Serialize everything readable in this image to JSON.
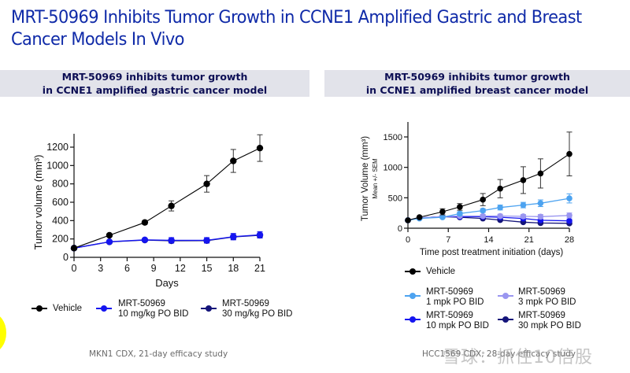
{
  "slide": {
    "title_line1": "MRT-50969 Inhibits Tumor Growth in CCNE1 Amplified Gastric and Breast",
    "title_line2": "Cancer Models In Vivo",
    "title_color": "#0f2aa8",
    "watermark": "雪球：抓住10倍股"
  },
  "panels": {
    "left": {
      "header_line1": "MRT-50969 inhibits tumor growth",
      "header_line2": "in CCNE1 amplified gastric cancer model",
      "footnote": "MKN1 CDX, 21-day efficacy study",
      "legend": [
        {
          "line1": "Vehicle",
          "line2": "",
          "color": "#000000"
        },
        {
          "line1": "MRT-50969",
          "line2": "10 mg/kg PO BID",
          "color": "#1515f0"
        },
        {
          "line1": "MRT-50969",
          "line2": "30 mg/kg PO BID",
          "color": "#14147a"
        }
      ]
    },
    "right": {
      "header_line1": "MRT-50969 inhibits tumor growth",
      "header_line2": "in CCNE1 amplified breast cancer model",
      "footnote": "HCC1569 CDX, 28-day efficacy study",
      "legend": [
        {
          "line1": "Vehicle",
          "line2": "",
          "color": "#000000"
        },
        {
          "line1": "MRT-50969",
          "line2": "1 mpk PO BID",
          "color": "#4da3f0"
        },
        {
          "line1": "MRT-50969",
          "line2": "3 mpk PO BID",
          "color": "#9a96f0"
        },
        {
          "line1": "MRT-50969",
          "line2": "10 mpk PO BID",
          "color": "#1515f0"
        },
        {
          "line1": "MRT-50969",
          "line2": "30 mpk PO BID",
          "color": "#14147a"
        }
      ]
    }
  },
  "chart_data": [
    {
      "type": "line",
      "title": "MRT-50969 inhibits tumor growth in CCNE1 amplified gastric cancer model",
      "xlabel": "Days",
      "ylabel": "Tumor volume (mm³)",
      "xlim": [
        0,
        21
      ],
      "ylim": [
        0,
        1300
      ],
      "xticks": [
        0,
        3,
        6,
        9,
        12,
        15,
        18,
        21
      ],
      "yticks": [
        0,
        200,
        400,
        600,
        800,
        1000,
        1200
      ],
      "x": [
        0,
        4,
        8,
        11,
        15,
        18,
        21
      ],
      "series": [
        {
          "name": "Vehicle",
          "color": "#000000",
          "values": [
            100,
            240,
            380,
            560,
            800,
            1050,
            1190
          ],
          "err": [
            10,
            15,
            20,
            55,
            90,
            125,
            145
          ]
        },
        {
          "name": "MRT-50969 10 mg/kg PO BID",
          "color": "#1515f0",
          "values": [
            100,
            170,
            190,
            185,
            185,
            225,
            245
          ],
          "err": [
            8,
            12,
            15,
            30,
            30,
            35,
            35
          ]
        },
        {
          "name": "MRT-50969 30 mg/kg PO BID",
          "color": "#14147a",
          "values": [
            100,
            168,
            188,
            180,
            182,
            222,
            240
          ],
          "err": [
            8,
            10,
            12,
            20,
            20,
            25,
            25
          ]
        }
      ],
      "legend": "bottom"
    },
    {
      "type": "line",
      "title": "MRT-50969 inhibits tumor growth in CCNE1 amplified breast cancer model",
      "xlabel": "Time post treatment initiation (days)",
      "ylabel": "Tumor Volume (mm³)",
      "ylabel_sub": "Mean +/- SEM",
      "xlim": [
        0,
        28
      ],
      "ylim": [
        0,
        1750
      ],
      "xticks": [
        0,
        7,
        14,
        21,
        28
      ],
      "yticks": [
        0,
        500,
        1000,
        1500
      ],
      "x": [
        0,
        2,
        6,
        9,
        13,
        16,
        20,
        23,
        28
      ],
      "series": [
        {
          "name": "Vehicle",
          "color": "#000000",
          "values": [
            130,
            180,
            270,
            350,
            470,
            650,
            790,
            900,
            1220
          ],
          "err": [
            10,
            15,
            50,
            55,
            100,
            150,
            220,
            240,
            360
          ]
        },
        {
          "name": "MRT-50969 1 mpk PO BID",
          "color": "#4da3f0",
          "values": [
            130,
            160,
            180,
            240,
            290,
            340,
            380,
            410,
            490
          ],
          "err": [
            10,
            10,
            15,
            30,
            30,
            40,
            45,
            55,
            75
          ]
        },
        {
          "name": "MRT-50969 3 mpk PO BID",
          "color": "#9a96f0",
          "values": [
            130,
            170,
            190,
            200,
            200,
            200,
            195,
            190,
            210
          ],
          "err": [
            10,
            10,
            15,
            20,
            25,
            30,
            30,
            35,
            40
          ]
        },
        {
          "name": "MRT-50969 10 mpk PO BID",
          "color": "#1515f0",
          "values": [
            130,
            170,
            190,
            190,
            190,
            180,
            160,
            130,
            120
          ],
          "err": [
            10,
            10,
            10,
            15,
            15,
            20,
            20,
            20,
            25
          ]
        },
        {
          "name": "MRT-50969 30 mpk PO BID",
          "color": "#14147a",
          "values": [
            130,
            170,
            190,
            180,
            160,
            135,
            100,
            85,
            80
          ],
          "err": [
            10,
            10,
            10,
            12,
            12,
            15,
            15,
            15,
            15
          ]
        }
      ],
      "legend": "bottom"
    }
  ]
}
